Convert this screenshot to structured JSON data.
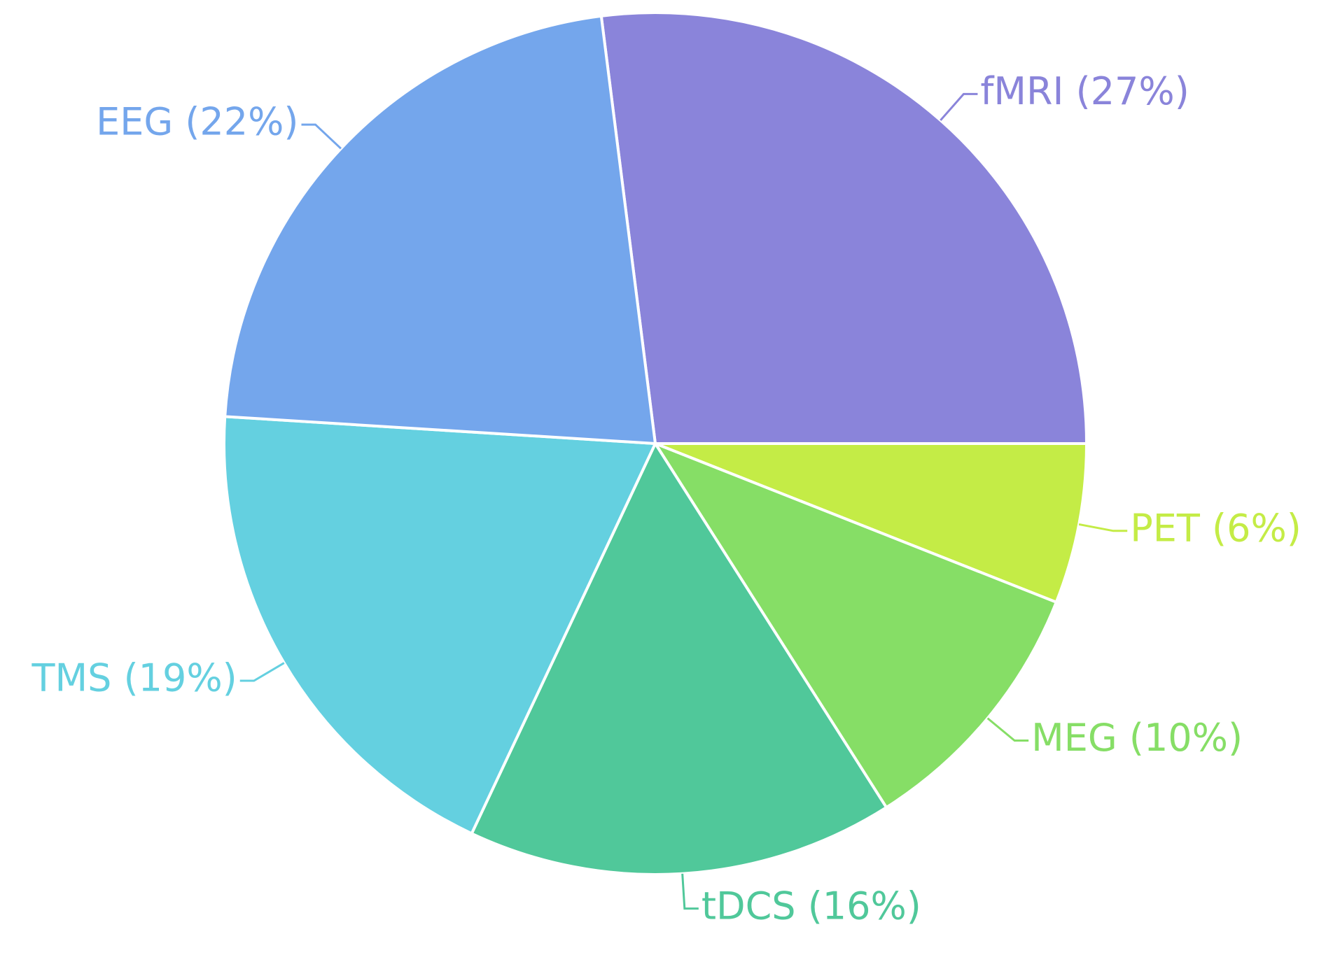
{
  "chart_data": {
    "type": "pie",
    "categories": [
      "fMRI",
      "PET",
      "MEG",
      "tDCS",
      "TMS",
      "EEG"
    ],
    "values": [
      27,
      6,
      10,
      16,
      19,
      22
    ],
    "value_labels": [
      "fMRI (27%)",
      "PET (6%)",
      "MEG (10%)",
      "tDCS (16%)",
      "TMS (19%)",
      "EEG (22%)"
    ],
    "colors": [
      "#8a84da",
      "#c4ec46",
      "#86de66",
      "#50c89a",
      "#64d0e0",
      "#74a6ec"
    ]
  }
}
